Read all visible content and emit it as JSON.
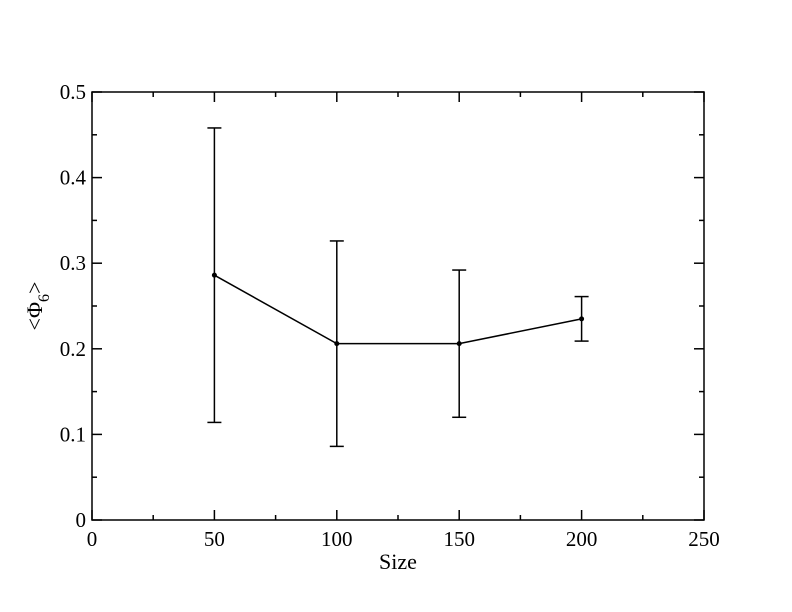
{
  "chart_data": {
    "type": "line",
    "xlabel": "Size",
    "ylabel": "<Φ6>",
    "ylabel_main": "<Φ",
    "ylabel_sub": "6",
    "ylabel_end": ">",
    "xlim": [
      0,
      250
    ],
    "ylim": [
      0,
      0.5
    ],
    "x_ticks": [
      0,
      50,
      100,
      150,
      200,
      250
    ],
    "x_tick_labels": [
      "0",
      "50",
      "100",
      "150",
      "200",
      "250"
    ],
    "x_minor_ticks": [
      25,
      75,
      125,
      175,
      225
    ],
    "y_ticks": [
      0,
      0.1,
      0.2,
      0.3,
      0.4,
      0.5
    ],
    "y_tick_labels": [
      "0",
      "0.1",
      "0.2",
      "0.3",
      "0.4",
      "0.5"
    ],
    "y_minor_ticks": [
      0.05,
      0.15,
      0.25,
      0.35,
      0.45
    ],
    "grid": false,
    "series": [
      {
        "x": [
          50,
          100,
          150,
          200
        ],
        "y": [
          0.286,
          0.206,
          0.206,
          0.235
        ],
        "err": [
          0.172,
          0.12,
          0.086,
          0.026
        ],
        "color": "#000000"
      }
    ]
  }
}
